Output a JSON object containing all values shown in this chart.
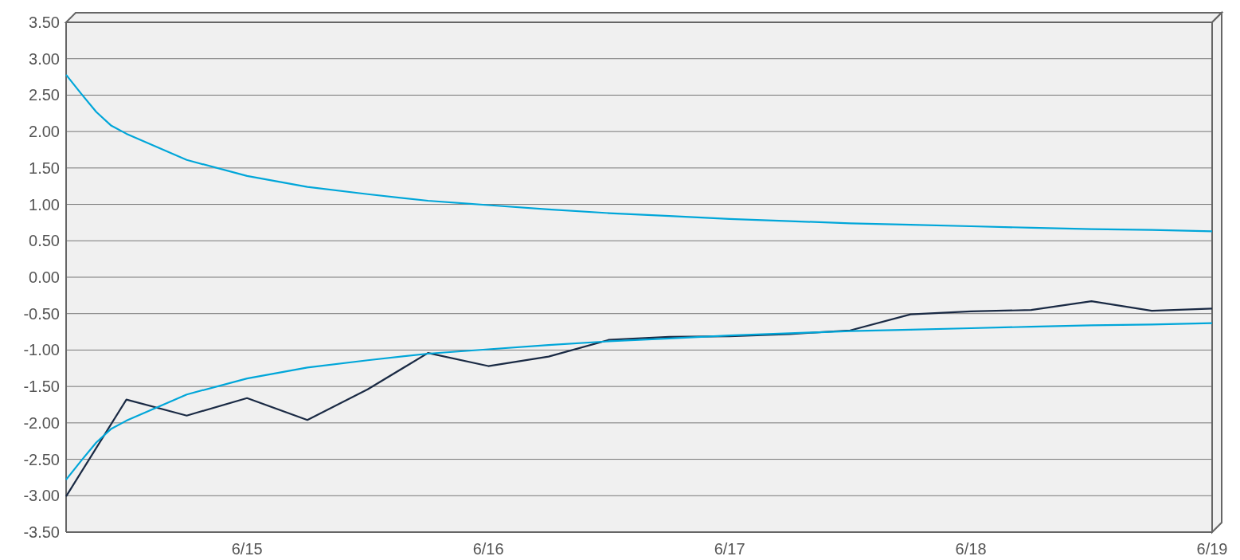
{
  "chart_data": {
    "type": "line",
    "x": [
      "--06-14T06:00",
      "--06-14T12:00",
      "--06-14T18:00",
      "--06-15T00:00",
      "--06-15T06:00",
      "--06-15T12:00",
      "--06-15T18:00",
      "--06-16T00:00",
      "--06-16T06:00",
      "--06-16T12:00",
      "--06-16T18:00",
      "--06-17T00:00",
      "--06-17T06:00",
      "--06-17T12:00",
      "--06-17T18:00",
      "--06-18T00:00",
      "--06-18T06:00",
      "--06-18T12:00",
      "--06-18T18:00",
      "--06-19T00:00"
    ],
    "series": [
      {
        "color": "#1a2a44",
        "values": [
          -3.01,
          -1.68,
          -1.9,
          -1.66,
          -1.96,
          -1.54,
          -1.04,
          -1.22,
          -1.09,
          -0.86,
          -0.82,
          -0.81,
          -0.78,
          -0.73,
          -0.51,
          -0.47,
          -0.45,
          -0.33,
          -0.46,
          -0.43
        ]
      },
      {
        "color": "#00a6d9",
        "x": [
          "--06-14T06:00",
          "--06-14T07:30",
          "--06-14T09:00",
          "--06-14T10:30",
          "--06-14T12:00",
          "--06-14T18:00",
          "--06-15T00:00",
          "--06-15T06:00",
          "--06-15T12:00",
          "--06-15T18:00",
          "--06-16T00:00",
          "--06-16T06:00",
          "--06-16T12:00",
          "--06-16T18:00",
          "--06-17T00:00",
          "--06-17T06:00",
          "--06-17T12:00",
          "--06-17T18:00",
          "--06-18T00:00",
          "--06-18T06:00",
          "--06-18T12:00",
          "--06-18T18:00",
          "--06-19T00:00"
        ],
        "values": [
          2.78,
          2.52,
          2.27,
          2.08,
          1.97,
          1.61,
          1.39,
          1.24,
          1.14,
          1.05,
          0.99,
          0.93,
          0.88,
          0.84,
          0.8,
          0.77,
          0.74,
          0.72,
          0.7,
          0.68,
          0.66,
          0.65,
          0.63
        ]
      },
      {
        "color": "#00a6d9",
        "x": [
          "--06-14T06:00",
          "--06-14T07:30",
          "--06-14T09:00",
          "--06-14T10:30",
          "--06-14T12:00",
          "--06-14T18:00",
          "--06-15T00:00",
          "--06-15T06:00",
          "--06-15T12:00",
          "--06-15T18:00",
          "--06-16T00:00",
          "--06-16T06:00",
          "--06-16T12:00",
          "--06-16T18:00",
          "--06-17T00:00",
          "--06-17T06:00",
          "--06-17T12:00",
          "--06-17T18:00",
          "--06-18T00:00",
          "--06-18T06:00",
          "--06-18T12:00",
          "--06-18T18:00",
          "--06-19T00:00"
        ],
        "values": [
          -2.78,
          -2.52,
          -2.27,
          -2.08,
          -1.97,
          -1.61,
          -1.39,
          -1.24,
          -1.14,
          -1.05,
          -0.99,
          -0.93,
          -0.88,
          -0.84,
          -0.8,
          -0.77,
          -0.74,
          -0.72,
          -0.7,
          -0.68,
          -0.66,
          -0.65,
          -0.63
        ]
      }
    ],
    "xlim": [
      "--06-14T06:00",
      "--06-19T00:00"
    ],
    "xticks": [
      {
        "value": "--06-15",
        "label": "6/15"
      },
      {
        "value": "--06-16",
        "label": "6/16"
      },
      {
        "value": "--06-17",
        "label": "6/17"
      },
      {
        "value": "--06-18",
        "label": "6/18"
      },
      {
        "value": "--06-19",
        "label": "6/19"
      }
    ],
    "ylim": [
      -3.5,
      3.5
    ],
    "yticks": [
      {
        "value": -3.5,
        "label": "-3.50"
      },
      {
        "value": -3,
        "label": "-3.00"
      },
      {
        "value": -2.5,
        "label": "-2.50"
      },
      {
        "value": -2,
        "label": "-2.00"
      },
      {
        "value": -1.5,
        "label": "-1.50"
      },
      {
        "value": -1,
        "label": "-1.00"
      },
      {
        "value": -0.5,
        "label": "-0.50"
      },
      {
        "value": 0,
        "label": "0.00"
      },
      {
        "value": 0.5,
        "label": "0.50"
      },
      {
        "value": 1,
        "label": "1.00"
      },
      {
        "value": 1.5,
        "label": "1.50"
      },
      {
        "value": 2,
        "label": "2.00"
      },
      {
        "value": 2.5,
        "label": "2.50"
      },
      {
        "value": 3,
        "label": "3.00"
      },
      {
        "value": 3.5,
        "label": "3.50"
      }
    ],
    "grid": "y",
    "marker": "none",
    "line_style": "solid"
  }
}
